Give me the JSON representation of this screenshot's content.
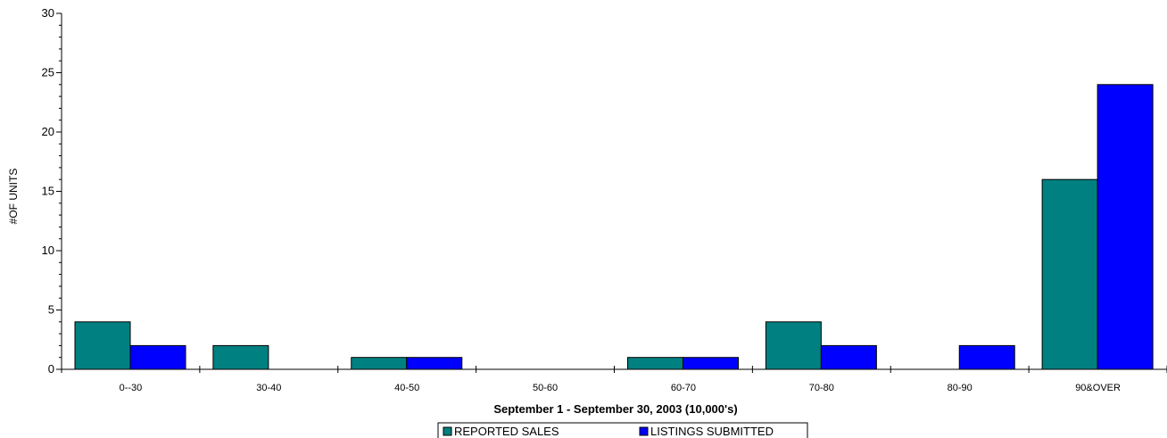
{
  "chart_data": {
    "type": "bar",
    "title": "",
    "xlabel": "September 1 - September 30, 2003 (10,000's)",
    "ylabel": "#OF UNITS",
    "ylim": [
      0,
      30
    ],
    "yticks": [
      0,
      5,
      10,
      15,
      20,
      25,
      30
    ],
    "categories": [
      "0--30",
      "30-40",
      "40-50",
      "50-60",
      "60-70",
      "70-80",
      "80-90",
      "90&OVER"
    ],
    "series": [
      {
        "name": "REPORTED SALES",
        "color": "#008080",
        "values": [
          4,
          2,
          1,
          0,
          1,
          4,
          0,
          16
        ]
      },
      {
        "name": "LISTINGS SUBMITTED",
        "color": "#0000ff",
        "values": [
          2,
          0,
          1,
          0,
          1,
          2,
          2,
          24
        ]
      }
    ],
    "legend_position": "bottom-center",
    "grid": false
  }
}
